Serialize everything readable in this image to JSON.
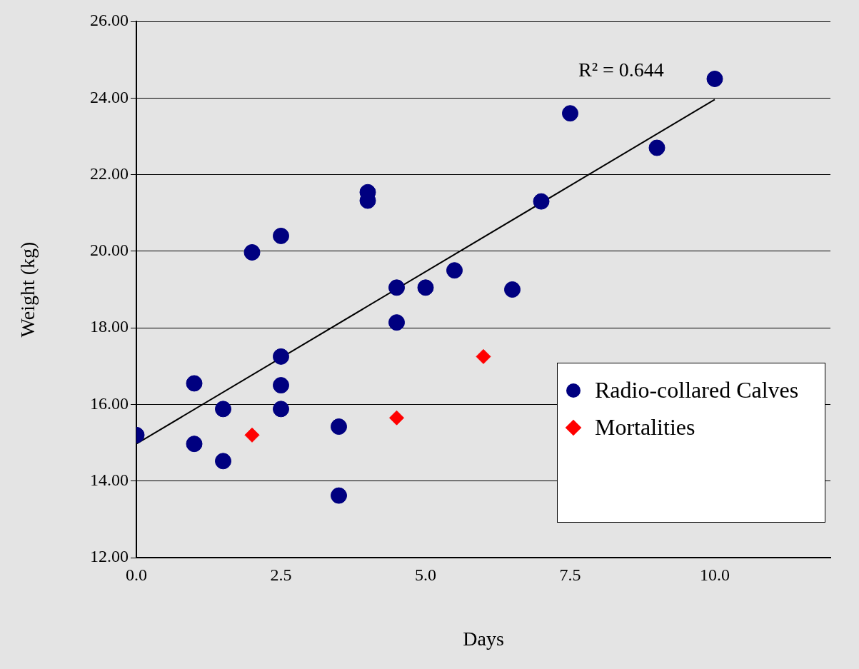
{
  "chart_data": {
    "type": "scatter",
    "xlabel": "Days",
    "ylabel": "Weight (kg)",
    "xlim": [
      0,
      12
    ],
    "xticks": [
      {
        "value": 0,
        "label": "0.0"
      },
      {
        "value": 2.5,
        "label": "2.5"
      },
      {
        "value": 5,
        "label": "5.0"
      },
      {
        "value": 7.5,
        "label": "7.5"
      },
      {
        "value": 10,
        "label": "10.0"
      }
    ],
    "ylim": [
      12,
      26
    ],
    "yticks": [
      {
        "value": 12,
        "label": "12.00"
      },
      {
        "value": 14,
        "label": "14.00"
      },
      {
        "value": 16,
        "label": "16.00"
      },
      {
        "value": 18,
        "label": "18.00"
      },
      {
        "value": 20,
        "label": "20.00"
      },
      {
        "value": 22,
        "label": "22.00"
      },
      {
        "value": 24,
        "label": "24.00"
      },
      {
        "value": 26,
        "label": "26.00"
      }
    ],
    "grid": "y",
    "legend": "right",
    "annotations": [
      "R² = 0.644"
    ],
    "series": [
      {
        "name": "Radio-collared Calves",
        "color": "#000080",
        "marker": "circle",
        "x": [
          0,
          1,
          1,
          1.5,
          1.5,
          2,
          2.5,
          2.5,
          2.5,
          2.5,
          3.5,
          3.5,
          4,
          4,
          4.5,
          4.5,
          5,
          5.5,
          6.5,
          7,
          7.5,
          9,
          10
        ],
        "values": [
          15.2,
          16.55,
          14.97,
          15.88,
          14.52,
          19.97,
          20.4,
          17.25,
          16.5,
          15.88,
          15.42,
          13.62,
          21.54,
          21.32,
          19.05,
          18.14,
          19.05,
          19.5,
          19.0,
          21.3,
          23.6,
          22.7,
          24.5
        ]
      },
      {
        "name": "Mortalities",
        "color": "#ff0000",
        "marker": "diamond",
        "x": [
          2,
          4.5,
          6
        ],
        "values": [
          15.2,
          15.65,
          17.25
        ]
      },
      {
        "type": "line",
        "color": "#000000",
        "marker": "none",
        "line_style": "solid",
        "x": [
          0,
          10
        ],
        "values": [
          14.97,
          23.96
        ]
      }
    ]
  }
}
